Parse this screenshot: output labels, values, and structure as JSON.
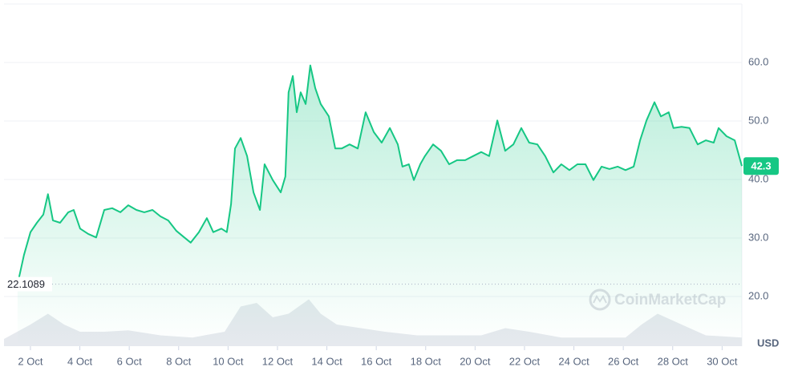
{
  "chart_data": {
    "type": "line",
    "currency": "USD",
    "watermark": "CoinMarketCap",
    "reference_line": 22.1089,
    "x": [
      1.48,
      1.74,
      2,
      2.26,
      2.52,
      2.71,
      2.91,
      3.2,
      3.53,
      3.75,
      4.01,
      4.34,
      4.66,
      4.99,
      5.31,
      5.64,
      5.96,
      6.29,
      6.61,
      6.94,
      7.26,
      7.58,
      7.91,
      8.23,
      8.49,
      8.82,
      9.14,
      9.4,
      9.73,
      9.95,
      10.12,
      10.28,
      10.51,
      10.77,
      11.03,
      11.29,
      11.48,
      11.81,
      12.13,
      12.32,
      12.45,
      12.62,
      12.78,
      12.94,
      13.14,
      13.33,
      13.53,
      13.75,
      14.08,
      14.34,
      14.6,
      14.92,
      15.25,
      15.57,
      15.9,
      16.22,
      16.55,
      16.87,
      17.06,
      17.32,
      17.52,
      17.78,
      17.97,
      18.3,
      18.62,
      18.95,
      19.27,
      19.6,
      19.92,
      20.25,
      20.57,
      20.9,
      21.22,
      21.55,
      21.87,
      22.19,
      22.52,
      22.84,
      23.17,
      23.49,
      23.82,
      24.14,
      24.47,
      24.79,
      25.12,
      25.44,
      25.77,
      26.09,
      26.42,
      26.68,
      26.94,
      27.26,
      27.52,
      27.84,
      28.03,
      28.36,
      28.68,
      29.01,
      29.34,
      29.66,
      29.86,
      30.18,
      30.51,
      30.8
    ],
    "series": [
      {
        "color": "#16c784",
        "values": [
          22.1,
          27.1,
          31,
          32.6,
          34,
          37.5,
          33,
          32.6,
          34.4,
          34.8,
          31.6,
          30.7,
          30.1,
          34.8,
          35.1,
          34.4,
          35.6,
          34.8,
          34.4,
          34.8,
          33.7,
          33,
          31.2,
          30.1,
          29.2,
          31,
          33.4,
          31,
          31.6,
          31,
          35.8,
          45.3,
          47.1,
          44,
          37.8,
          34.8,
          42.6,
          39.9,
          37.8,
          40.5,
          54.9,
          57.7,
          51.5,
          54.9,
          52.9,
          59.5,
          55.6,
          52.9,
          50.8,
          45.3,
          45.3,
          46,
          45.3,
          51.5,
          48.1,
          46.3,
          48.8,
          46,
          42.2,
          42.6,
          39.9,
          42.6,
          44,
          46,
          44.9,
          42.6,
          43.3,
          43.3,
          44,
          44.7,
          44,
          50.1,
          44.9,
          46,
          48.8,
          46.3,
          46,
          44,
          41.2,
          42.6,
          41.6,
          42.6,
          42.6,
          39.9,
          42.2,
          41.8,
          42.2,
          41.6,
          42.2,
          46.7,
          50.1,
          53.2,
          50.8,
          51.5,
          48.8,
          49,
          48.8,
          46,
          46.7,
          46.3,
          48.8,
          47.4,
          46.7,
          42.3
        ]
      }
    ],
    "volume": {
      "color": "#e6e9ee",
      "x": [
        0.93,
        2,
        2.71,
        3.36,
        4.01,
        4.99,
        5.96,
        7.26,
        8.56,
        9.86,
        10.51,
        11.16,
        11.81,
        12.45,
        13.27,
        13.75,
        14.4,
        15.38,
        16.35,
        17.65,
        18.95,
        20.25,
        21.22,
        22.19,
        23.49,
        24.79,
        26.09,
        26.74,
        27.39,
        28.36,
        29.34,
        30.8
      ],
      "values": [
        10,
        30,
        45,
        30,
        20,
        20,
        22,
        15,
        12,
        20,
        55,
        60,
        40,
        45,
        65,
        45,
        30,
        25,
        20,
        15,
        15,
        15,
        25,
        20,
        12,
        12,
        12,
        30,
        45,
        30,
        15,
        12
      ]
    },
    "xlim": [
      0.93,
      30.8
    ],
    "xticks": [
      {
        "value": 2,
        "label": "2 Oct"
      },
      {
        "value": 4,
        "label": "4 Oct"
      },
      {
        "value": 6,
        "label": "6 Oct"
      },
      {
        "value": 8,
        "label": "8 Oct"
      },
      {
        "value": 10,
        "label": "10 Oct"
      },
      {
        "value": 12,
        "label": "12 Oct"
      },
      {
        "value": 14,
        "label": "14 Oct"
      },
      {
        "value": 16,
        "label": "16 Oct"
      },
      {
        "value": 18,
        "label": "18 Oct"
      },
      {
        "value": 20,
        "label": "20 Oct"
      },
      {
        "value": 22,
        "label": "22 Oct"
      },
      {
        "value": 24,
        "label": "24 Oct"
      },
      {
        "value": 26,
        "label": "26 Oct"
      },
      {
        "value": 28,
        "label": "28 Oct"
      },
      {
        "value": 30,
        "label": "30 Oct"
      }
    ],
    "ylim": [
      12,
      70
    ],
    "yticks": [
      {
        "value": 20,
        "label": "20.0"
      },
      {
        "value": 30,
        "label": "30.0"
      },
      {
        "value": 40,
        "label": "40.0"
      },
      {
        "value": 50,
        "label": "50.0"
      },
      {
        "value": 60,
        "label": "60.0"
      }
    ],
    "y2lim": [
      0,
      100
    ],
    "grid": true
  }
}
